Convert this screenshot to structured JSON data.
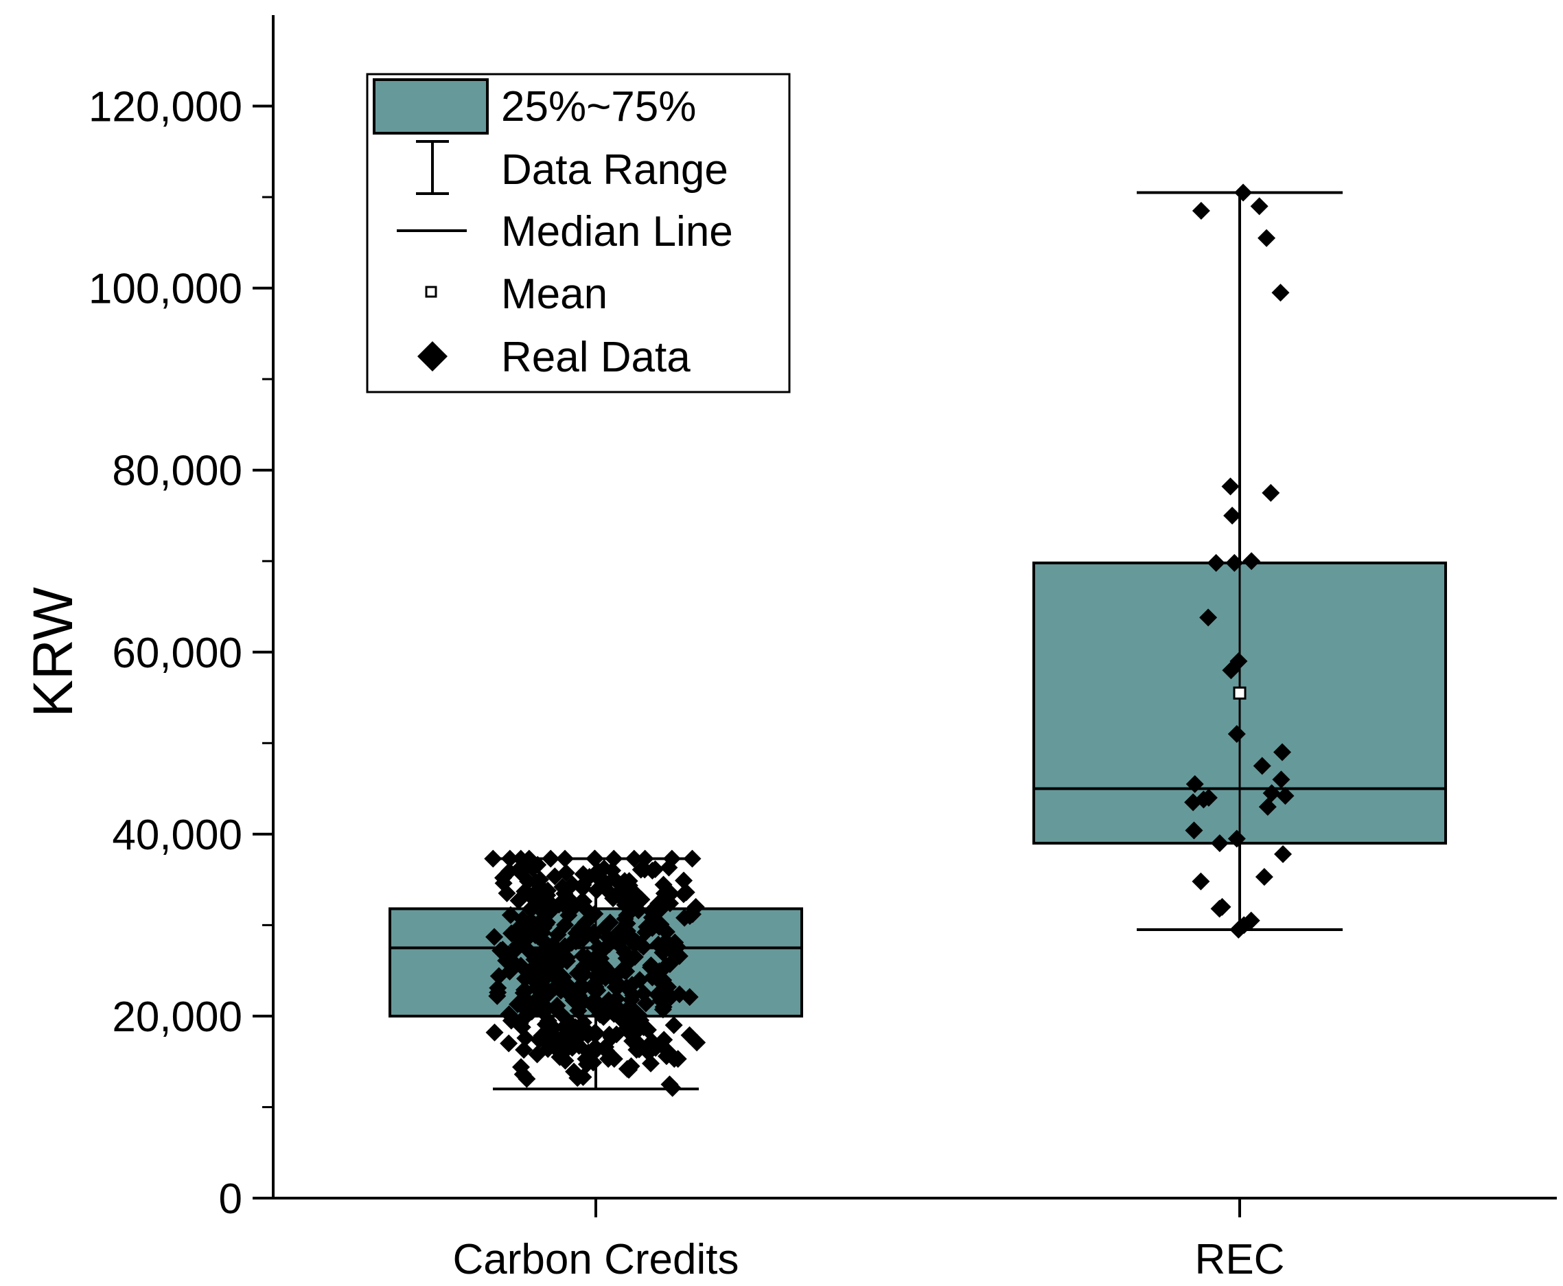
{
  "chart_data": {
    "type": "box",
    "title": "",
    "xlabel": "",
    "ylabel": "KRW",
    "ylim": [
      0,
      130000
    ],
    "y_ticks": [
      0,
      20000,
      40000,
      60000,
      80000,
      100000,
      120000
    ],
    "y_tick_labels": [
      "0",
      "20,000",
      "40,000",
      "60,000",
      "80,000",
      "100,000",
      "120,000"
    ],
    "box_color": "#66999a",
    "categories": [
      "Carbon Credits",
      "REC"
    ],
    "boxes": [
      {
        "name": "Carbon Credits",
        "min": 12000,
        "q1": 20000,
        "median": 27500,
        "q3": 31800,
        "max": 37300,
        "points": [
          29200,
          28600,
          27400,
          24800,
          24600,
          21500,
          20200,
          19000,
          15300,
          13200,
          32300,
          30100,
          29000,
          26800,
          25400,
          23000,
          21800,
          17600,
          15300,
          14900,
          37300,
          35200,
          33600,
          31200,
          27800,
          25500,
          22100,
          20500,
          18400,
          16200,
          14500,
          37300,
          34800,
          32000,
          29500,
          26900,
          24200,
          22800,
          19800,
          17200,
          15100,
          37300,
          35900,
          33400,
          30600,
          28100,
          25900,
          23500,
          21000,
          18800,
          16600,
          14200,
          37300,
          34400,
          31800,
          29100,
          27300,
          24700,
          22300,
          20100,
          17900,
          15500,
          13300,
          37300,
          35600,
          33000,
          30300,
          28500,
          26200,
          23800,
          21400,
          19200,
          16900,
          14800,
          12500,
          37300,
          34900,
          32400,
          29800,
          27000,
          25100,
          22600,
          20400,
          18100,
          15800,
          13900,
          37300,
          36100,
          33800,
          31000,
          28700,
          26400,
          24000,
          21600,
          19500,
          17100,
          14700,
          12100,
          37300,
          35300,
          32700,
          30100,
          27600,
          25300,
          23100,
          20800,
          18500,
          16300,
          14100,
          37300,
          35000,
          32200,
          29700,
          27200,
          24900,
          22200,
          19900,
          17400,
          15600,
          13600,
          37300,
          34600,
          31500,
          28800,
          26100,
          23600,
          21200,
          18700,
          16500,
          14400,
          13100,
          37300,
          33900,
          31100,
          28200,
          25700,
          23200,
          20600,
          18200,
          16000,
          15300,
          37300,
          34200,
          30800,
          27900,
          25000,
          22400,
          19600,
          17000,
          15300,
          37300,
          33500,
          30400,
          27200,
          24400,
          21900,
          19300,
          17300,
          29600,
          26600,
          24300,
          22900,
          21300,
          15300,
          26000,
          23200,
          22400,
          19900
        ],
        "mean": null
      },
      {
        "name": "REC",
        "min": 29500,
        "q1": 39000,
        "median": 45000,
        "q3": 69800,
        "max": 110500,
        "mean": 55500,
        "points": [
          109000,
          110500,
          108500,
          105500,
          99500,
          78200,
          77500,
          75000,
          70000,
          69800,
          69800,
          63800,
          59000,
          58000,
          51000,
          49000,
          47500,
          46000,
          45500,
          44500,
          44200,
          44000,
          43800,
          43500,
          43000,
          40400,
          39500,
          39000,
          37800,
          35300,
          34800,
          32000,
          31800,
          30500,
          30000,
          29500
        ]
      }
    ],
    "legend": {
      "position": "top-left",
      "entries": [
        "25%~75%",
        "Data Range",
        "Median Line",
        "Mean",
        "Real Data"
      ]
    }
  }
}
